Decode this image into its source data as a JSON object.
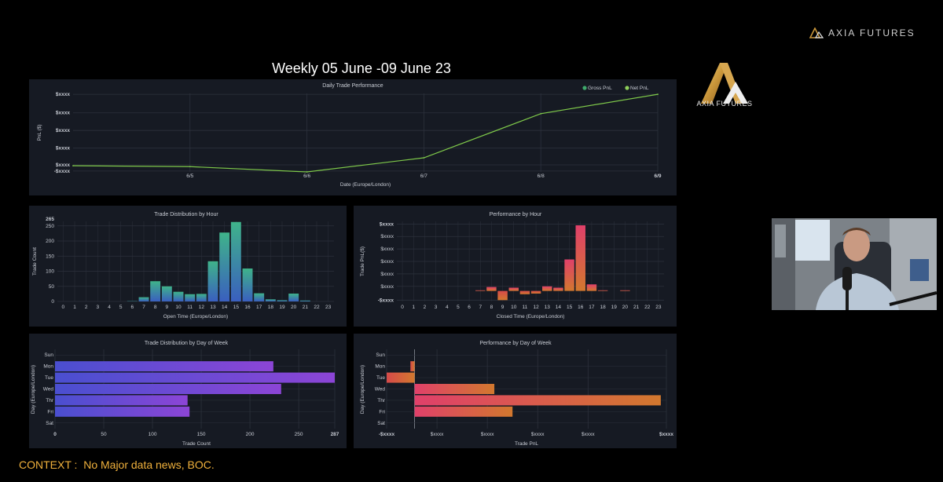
{
  "brand": {
    "name": "AXIA FUTURES",
    "logo_caption": "AXIA FUTURES",
    "accent": "#c9963a"
  },
  "main_title": "Weekly 05 June -09 June 23",
  "context": {
    "label": "CONTEXT :",
    "text": "No Major data news, BOC."
  },
  "colors": {
    "panel_bg": "#161a23",
    "grid": "#2c313c",
    "axis_text": "#c8ccd4",
    "line_net": "#7ec84a",
    "gross_dot": "#3fa86b",
    "net_dot": "#8ed05a",
    "hist_top": "#3fb38a",
    "hist_bottom": "#3a5fbf",
    "red": "#d64a4a",
    "orange": "#d2782e",
    "pink": "#e0406a",
    "blue_bar": "#4a4fd0",
    "purple_bar": "#8c45d6"
  },
  "chart_data": [
    {
      "id": "daily",
      "type": "line",
      "title": "Daily Trade Performance",
      "xlabel": "Date (Europe/London)",
      "ylabel": "PnL ($)",
      "x_ticks": [
        "6/5",
        "6/6",
        "6/7",
        "6/8",
        "6/9"
      ],
      "y_ticks": [
        "$xxxx",
        "$xxxx",
        "$xxxx",
        "$xxxx",
        "$xxxx",
        "-$xxxx"
      ],
      "legend": [
        "Gross PnL",
        "Net PnL"
      ],
      "legend_position": "top-right",
      "x": [
        0,
        1,
        2,
        3,
        4,
        5
      ],
      "ylim": [
        -0.35,
        4.1
      ],
      "series": [
        {
          "name": "Net PnL",
          "values": [
            0,
            -0.05,
            -0.35,
            0.45,
            2.95,
            4.05
          ]
        }
      ]
    },
    {
      "id": "dist_hour",
      "type": "bar",
      "title": "Trade Distribution by Hour",
      "xlabel": "Open Time (Europe/London)",
      "ylabel": "Trade Count",
      "categories": [
        "0",
        "1",
        "2",
        "3",
        "4",
        "5",
        "6",
        "7",
        "8",
        "9",
        "10",
        "11",
        "12",
        "13",
        "14",
        "15",
        "16",
        "17",
        "18",
        "19",
        "20",
        "21",
        "22",
        "23"
      ],
      "y_ticks": [
        "0",
        "50",
        "100",
        "150",
        "200",
        "250",
        "265"
      ],
      "ylim": [
        0,
        265
      ],
      "values": [
        0,
        0,
        0,
        0,
        0,
        0,
        1,
        14,
        67,
        50,
        32,
        24,
        25,
        133,
        228,
        263,
        109,
        27,
        7,
        4,
        26,
        3,
        0,
        0
      ]
    },
    {
      "id": "perf_hour",
      "type": "bar",
      "title": "Performance by Hour",
      "xlabel": "Closed Time (Europe/London)",
      "ylabel": "Trade PnL($)",
      "categories": [
        "0",
        "1",
        "2",
        "3",
        "4",
        "5",
        "6",
        "7",
        "8",
        "9",
        "10",
        "11",
        "12",
        "13",
        "14",
        "15",
        "16",
        "17",
        "18",
        "19",
        "20",
        "21",
        "22",
        "23"
      ],
      "y_ticks": [
        "$xxxx",
        "$xxxx",
        "$xxxx",
        "$xxxx",
        "$xxxx",
        "$xxxx",
        "-$xxxx"
      ],
      "ylim": [
        -0.8,
        5.3
      ],
      "values": [
        0,
        0,
        0,
        0,
        0,
        0,
        0,
        0.05,
        0.3,
        -0.7,
        0.25,
        -0.25,
        -0.2,
        0.35,
        0.25,
        2.4,
        5.0,
        0.5,
        0.05,
        0,
        0.05,
        0,
        0,
        0
      ]
    },
    {
      "id": "dist_day",
      "type": "bar",
      "orientation": "horizontal",
      "title": "Trade Distribution by Day of Week",
      "xlabel": "Trade Count",
      "ylabel": "Day (Europe/London)",
      "categories": [
        "Sun",
        "Mon",
        "Tue",
        "Wed",
        "Thr",
        "Fri",
        "Sat"
      ],
      "x_ticks": [
        "0",
        "50",
        "100",
        "150",
        "200",
        "250",
        "287"
      ],
      "xlim": [
        0,
        287
      ],
      "values": [
        0,
        224,
        287,
        232,
        136,
        138,
        0
      ]
    },
    {
      "id": "perf_day",
      "type": "bar",
      "orientation": "horizontal",
      "title": "Performance by Day of Week",
      "xlabel": "Trade PnL",
      "ylabel": "Day (Europe/London)",
      "categories": [
        "Sun",
        "Mon",
        "Tue",
        "Wed",
        "Thr",
        "Fri",
        "Sat"
      ],
      "x_ticks": [
        "-$xxxx",
        "$xxxx",
        "$xxxx",
        "$xxxx",
        "$xxxx",
        "$xxxx"
      ],
      "xlim": [
        -1.0,
        9.0
      ],
      "values": [
        0,
        -0.15,
        -1.0,
        2.85,
        8.8,
        3.5,
        0
      ]
    }
  ]
}
